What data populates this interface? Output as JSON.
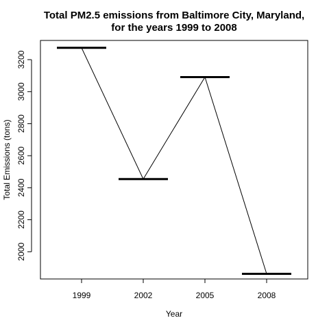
{
  "chart_data": {
    "type": "line",
    "title": "Total PM2.5 emissions from Baltimore City, Maryland,",
    "subtitle": "for the years 1999 to 2008",
    "xlabel": "Year",
    "ylabel": "Total Emissions (tons)",
    "categories": [
      "1999",
      "2002",
      "2005",
      "2008"
    ],
    "values": [
      3274,
      2454,
      3091,
      1862
    ],
    "ylim": [
      1830,
      3320
    ],
    "yticks": [
      2000,
      2200,
      2400,
      2600,
      2800,
      3000,
      3200
    ],
    "ytick_labels": [
      "2000",
      "2200",
      "2400",
      "2600",
      "2800",
      "3000",
      "3200"
    ],
    "grid": false,
    "legend": "none",
    "colors": {
      "line": "#000000",
      "marker": "#000000",
      "axes": "#000000"
    }
  }
}
